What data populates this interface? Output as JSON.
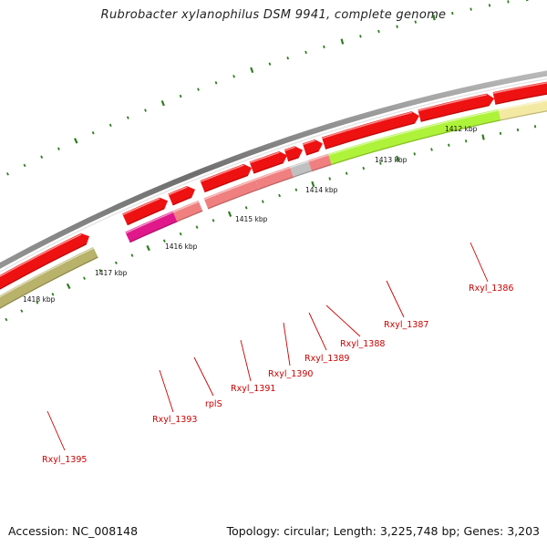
{
  "title": "Rubrobacter xylanophilus DSM 9941, complete genome",
  "footer": {
    "accession": "Accession: NC_008148",
    "summary": "Topology: circular; Length: 3,225,748 bp; Genes: 3,203"
  },
  "colors": {
    "backbone": "#7a7a7a",
    "tick": "#2e7d1e",
    "label_text": "#cc0000",
    "leader_line": "#cc0000",
    "cds_red": "#ee1111",
    "rrna_magenta": "#e0188a",
    "pink": "#f08080",
    "grey": "#c0c0c0",
    "lime": "#aef23a",
    "olive": "#b8b26a",
    "pale_yellow": "#f3e9a2"
  },
  "kbp_labels": [
    {
      "id": "1412",
      "text": "1412 kbp"
    },
    {
      "id": "1413",
      "text": "1413 kbp"
    },
    {
      "id": "1414",
      "text": "1414 kbp"
    },
    {
      "id": "1415",
      "text": "1415 kbp"
    },
    {
      "id": "1416",
      "text": "1416 kbp"
    },
    {
      "id": "1417",
      "text": "1417 kbp"
    },
    {
      "id": "1418",
      "text": "1418 kbp"
    }
  ],
  "gene_labels": [
    {
      "id": "Rxyl_1386",
      "text": "Rxyl_1386"
    },
    {
      "id": "Rxyl_1387",
      "text": "Rxyl_1387"
    },
    {
      "id": "Rxyl_1388",
      "text": "Rxyl_1388"
    },
    {
      "id": "Rxyl_1389",
      "text": "Rxyl_1389"
    },
    {
      "id": "Rxyl_1390",
      "text": "Rxyl_1390"
    },
    {
      "id": "Rxyl_1391",
      "text": "Rxyl_1391"
    },
    {
      "id": "rplS",
      "text": "rplS"
    },
    {
      "id": "Rxyl_1393",
      "text": "Rxyl_1393"
    },
    {
      "id": "Rxyl_1395",
      "text": "Rxyl_1395"
    }
  ]
}
